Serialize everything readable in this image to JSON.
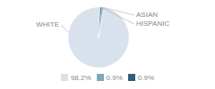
{
  "chart_data": {
    "type": "pie",
    "categories": [
      "WHITE",
      "ASIAN",
      "HISPANIC"
    ],
    "values": [
      98.2,
      0.9,
      0.9
    ],
    "value_labels": [
      "98.2%",
      "0.9%",
      "0.9%"
    ],
    "colors": [
      "#d9e2ec",
      "#7da8ba",
      "#2e5f7a"
    ],
    "legend": "bottom"
  }
}
